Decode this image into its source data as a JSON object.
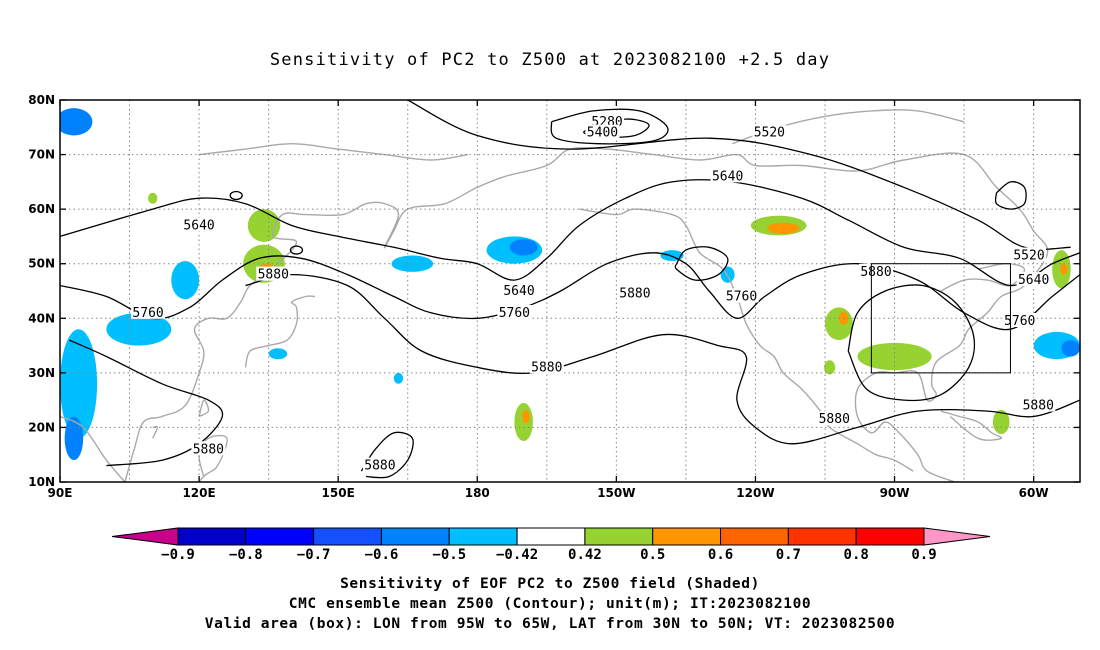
{
  "title": "Sensitivity of PC2 to Z500 at 2023082100 +2.5 day",
  "map": {
    "extent": {
      "lon": [
        90,
        310
      ],
      "lat": [
        10,
        80
      ]
    },
    "lon_ticks": [
      {
        "lon": 90,
        "label": "90E"
      },
      {
        "lon": 120,
        "label": "120E"
      },
      {
        "lon": 150,
        "label": "150E"
      },
      {
        "lon": 180,
        "label": "180"
      },
      {
        "lon": 210,
        "label": "150W"
      },
      {
        "lon": 240,
        "label": "120W"
      },
      {
        "lon": 270,
        "label": "90W"
      },
      {
        "lon": 300,
        "label": "60W"
      }
    ],
    "lat_ticks": [
      {
        "lat": 80,
        "label": "80N"
      },
      {
        "lat": 70,
        "label": "70N"
      },
      {
        "lat": 60,
        "label": "60N"
      },
      {
        "lat": 50,
        "label": "50N"
      },
      {
        "lat": 40,
        "label": "40N"
      },
      {
        "lat": 30,
        "label": "30N"
      },
      {
        "lat": 20,
        "label": "20N"
      },
      {
        "lat": 10,
        "label": "10N"
      }
    ],
    "grid": true,
    "valid_box": {
      "lon": [
        265,
        295
      ],
      "lat": [
        30,
        50
      ]
    },
    "contours": [
      {
        "value": 5280,
        "label": "5280",
        "points": [
          [
            205,
            75
          ],
          [
            212,
            76.5
          ],
          [
            217,
            75.5
          ],
          [
            214,
            73.5
          ],
          [
            207,
            73.2
          ],
          [
            203,
            74
          ],
          [
            205,
            75
          ]
        ]
      },
      {
        "value": 5400,
        "label": "5400",
        "points": [
          [
            196,
            76
          ],
          [
            205,
            78
          ],
          [
            215,
            78
          ],
          [
            221,
            75
          ],
          [
            218,
            72.5
          ],
          [
            206,
            72
          ],
          [
            197,
            73
          ],
          [
            196,
            76
          ]
        ]
      },
      {
        "value": 5520,
        "label": "5520",
        "points": [
          [
            165,
            80
          ],
          [
            180,
            73.5
          ],
          [
            200,
            71
          ],
          [
            230,
            73
          ],
          [
            252,
            70
          ],
          [
            272,
            64
          ],
          [
            288,
            58
          ],
          [
            298,
            53
          ],
          [
            308,
            53
          ]
        ]
      },
      {
        "value": 5640,
        "label": "5640",
        "points": [
          [
            90,
            55
          ],
          [
            110,
            60
          ],
          [
            120,
            62
          ],
          [
            130,
            61
          ],
          [
            140,
            57
          ],
          [
            150,
            55
          ],
          [
            162,
            53
          ],
          [
            172,
            51
          ],
          [
            180,
            50
          ],
          [
            188,
            47
          ],
          [
            195,
            51
          ],
          [
            202,
            57
          ],
          [
            212,
            62
          ],
          [
            222,
            65
          ],
          [
            235,
            65
          ],
          [
            250,
            62
          ],
          [
            260,
            58
          ],
          [
            272,
            53
          ],
          [
            284,
            51
          ],
          [
            295,
            46
          ],
          [
            304,
            50
          ],
          [
            310,
            52
          ]
        ]
      },
      {
        "value": 5760,
        "label": "5760",
        "points": [
          [
            90,
            46
          ],
          [
            100,
            44
          ],
          [
            110,
            40
          ],
          [
            118,
            42
          ],
          [
            125,
            47
          ],
          [
            133,
            51
          ],
          [
            142,
            51
          ],
          [
            152,
            48
          ],
          [
            162,
            44
          ],
          [
            170,
            41
          ],
          [
            180,
            40
          ],
          [
            190,
            42
          ],
          [
            198,
            45
          ],
          [
            208,
            50
          ],
          [
            218,
            52
          ],
          [
            225,
            50
          ],
          [
            230,
            45
          ],
          [
            236,
            40
          ],
          [
            242,
            44
          ],
          [
            250,
            48
          ],
          [
            262,
            50
          ],
          [
            275,
            47
          ],
          [
            285,
            41
          ],
          [
            295,
            38
          ],
          [
            304,
            44
          ],
          [
            310,
            48
          ]
        ]
      },
      {
        "value": 5880,
        "label": "5880",
        "points": [
          [
            92,
            36
          ],
          [
            100,
            33
          ],
          [
            112,
            28
          ],
          [
            122,
            25
          ],
          [
            125,
            22
          ],
          [
            120,
            17
          ],
          [
            112,
            14
          ],
          [
            100,
            13
          ]
        ]
      },
      {
        "value": 5880,
        "label": "5880",
        "points": [
          [
            130,
            46
          ],
          [
            140,
            48
          ],
          [
            152,
            46
          ],
          [
            160,
            40
          ],
          [
            168,
            34
          ],
          [
            180,
            31
          ],
          [
            192,
            30
          ],
          [
            205,
            33
          ],
          [
            220,
            37
          ],
          [
            232,
            35
          ],
          [
            238,
            33
          ],
          [
            236,
            25
          ],
          [
            240,
            20
          ],
          [
            248,
            17
          ],
          [
            262,
            20
          ],
          [
            275,
            23
          ],
          [
            290,
            23
          ],
          [
            300,
            22
          ],
          [
            310,
            25
          ]
        ]
      },
      {
        "value": 5880,
        "label": "5880",
        "points": [
          [
            155,
            12
          ],
          [
            158,
            16
          ],
          [
            162,
            19
          ],
          [
            166,
            18
          ],
          [
            165,
            14
          ],
          [
            161,
            11
          ],
          [
            156,
            11
          ]
        ]
      },
      {
        "value": 5880,
        "label": "5880",
        "points": [
          [
            260,
            34
          ],
          [
            262,
            41
          ],
          [
            268,
            45
          ],
          [
            276,
            46
          ],
          [
            283,
            43
          ],
          [
            287,
            37
          ],
          [
            286,
            31
          ],
          [
            280,
            26
          ],
          [
            272,
            25
          ],
          [
            264,
            27
          ],
          [
            260,
            34
          ]
        ]
      }
    ],
    "contour_labels": [
      {
        "text": "5280",
        "lon": 208,
        "lat": 76
      },
      {
        "text": "5400",
        "lon": 207,
        "lat": 74
      },
      {
        "text": "5520",
        "lon": 243,
        "lat": 74
      },
      {
        "text": "5520",
        "lon": 299,
        "lat": 51.5
      },
      {
        "text": "5640",
        "lon": 120,
        "lat": 57
      },
      {
        "text": "5640",
        "lon": 189,
        "lat": 45
      },
      {
        "text": "5640",
        "lon": 234,
        "lat": 66
      },
      {
        "text": "5640",
        "lon": 300,
        "lat": 47
      },
      {
        "text": "5760",
        "lon": 109,
        "lat": 41
      },
      {
        "text": "5760",
        "lon": 188,
        "lat": 41
      },
      {
        "text": "5760",
        "lon": 237,
        "lat": 44
      },
      {
        "text": "5760",
        "lon": 297,
        "lat": 39.5
      },
      {
        "text": "5880",
        "lon": 136,
        "lat": 48
      },
      {
        "text": "5880",
        "lon": 122,
        "lat": 16
      },
      {
        "text": "5880",
        "lon": 159,
        "lat": 13
      },
      {
        "text": "5880",
        "lon": 195,
        "lat": 31
      },
      {
        "text": "5880",
        "lon": 214,
        "lat": 44.5
      },
      {
        "text": "5880",
        "lon": 266,
        "lat": 48.5
      },
      {
        "text": "5880",
        "lon": 257,
        "lat": 21.5
      },
      {
        "text": "5880",
        "lon": 301,
        "lat": 24
      }
    ],
    "shaded": [
      {
        "level": -0.6,
        "color": "#0082ff",
        "center": [
          93,
          76
        ],
        "r": [
          4,
          2.5
        ]
      },
      {
        "level": -0.5,
        "color": "#00bfff",
        "center": [
          117,
          47
        ],
        "r": [
          3,
          3.5
        ]
      },
      {
        "level": -0.5,
        "color": "#00bfff",
        "center": [
          107,
          38
        ],
        "r": [
          7,
          3
        ]
      },
      {
        "level": -0.5,
        "color": "#00bfff",
        "center": [
          94,
          28
        ],
        "r": [
          4,
          10
        ]
      },
      {
        "level": -0.6,
        "color": "#0082ff",
        "center": [
          93,
          18
        ],
        "r": [
          2,
          4
        ]
      },
      {
        "level": -0.5,
        "color": "#00bfff",
        "center": [
          137,
          33.5
        ],
        "r": [
          2,
          1
        ]
      },
      {
        "level": -0.5,
        "color": "#00bfff",
        "center": [
          166,
          50
        ],
        "r": [
          4.5,
          1.5
        ]
      },
      {
        "level": -0.5,
        "color": "#00bfff",
        "center": [
          188,
          52.5
        ],
        "r": [
          6,
          2.5
        ]
      },
      {
        "level": -0.6,
        "color": "#0082ff",
        "center": [
          190,
          53
        ],
        "r": [
          3,
          1.5
        ]
      },
      {
        "level": -0.5,
        "color": "#00bfff",
        "center": [
          222,
          51.5
        ],
        "r": [
          2.5,
          1
        ]
      },
      {
        "level": -0.5,
        "color": "#00bfff",
        "center": [
          234,
          48
        ],
        "r": [
          1.5,
          1.5
        ]
      },
      {
        "level": -0.5,
        "color": "#00bfff",
        "center": [
          305,
          35
        ],
        "r": [
          5,
          2.5
        ]
      },
      {
        "level": -0.6,
        "color": "#0082ff",
        "center": [
          308,
          34.5
        ],
        "r": [
          2,
          1.5
        ]
      },
      {
        "level": -0.5,
        "color": "#00bfff",
        "center": [
          163,
          29
        ],
        "r": [
          1,
          1
        ]
      },
      {
        "level": 0.5,
        "color": "#96d232",
        "center": [
          134,
          57
        ],
        "r": [
          3.5,
          3
        ]
      },
      {
        "level": 0.5,
        "color": "#96d232",
        "center": [
          134,
          50
        ],
        "r": [
          4.5,
          3.5
        ]
      },
      {
        "level": 0.6,
        "color": "#ff9600",
        "center": [
          134.5,
          48.5
        ],
        "r": [
          2,
          1.5
        ]
      },
      {
        "level": 0.5,
        "color": "#96d232",
        "center": [
          110,
          62
        ],
        "r": [
          1,
          1
        ]
      },
      {
        "level": 0.5,
        "color": "#96d232",
        "center": [
          190,
          21
        ],
        "r": [
          2,
          3.5
        ]
      },
      {
        "level": 0.6,
        "color": "#ff9600",
        "center": [
          190.5,
          22
        ],
        "r": [
          0.8,
          1.2
        ]
      },
      {
        "level": 0.5,
        "color": "#96d232",
        "center": [
          245,
          57
        ],
        "r": [
          6,
          1.8
        ]
      },
      {
        "level": 0.6,
        "color": "#ff9600",
        "center": [
          246,
          56.5
        ],
        "r": [
          3.5,
          1
        ]
      },
      {
        "level": 0.5,
        "color": "#96d232",
        "center": [
          258,
          39
        ],
        "r": [
          3,
          3
        ]
      },
      {
        "level": 0.6,
        "color": "#ff9600",
        "center": [
          259,
          40
        ],
        "r": [
          1,
          1.2
        ]
      },
      {
        "level": 0.5,
        "color": "#96d232",
        "center": [
          270,
          33
        ],
        "r": [
          8,
          2.5
        ]
      },
      {
        "level": 0.5,
        "color": "#96d232",
        "center": [
          256,
          31
        ],
        "r": [
          1.2,
          1.3
        ]
      },
      {
        "level": 0.5,
        "color": "#96d232",
        "center": [
          293,
          21
        ],
        "r": [
          1.8,
          2.2
        ]
      },
      {
        "level": 0.5,
        "color": "#96d232",
        "center": [
          306,
          49
        ],
        "r": [
          2,
          3.5
        ]
      },
      {
        "level": 0.6,
        "color": "#ff9600",
        "center": [
          306.5,
          49
        ],
        "r": [
          0.8,
          1
        ]
      }
    ]
  },
  "colorbar": {
    "colors": [
      "#c8008c",
      "#0000c8",
      "#0000ff",
      "#1450ff",
      "#0082ff",
      "#00bfff",
      "#ffffff",
      "#96d232",
      "#ff9600",
      "#ff6400",
      "#ff3200",
      "#ff0000",
      "#ff96c8"
    ],
    "labels": [
      "−0.9",
      "−0.8",
      "−0.7",
      "−0.6",
      "−0.5",
      "−0.42",
      "0.42",
      "0.5",
      "0.6",
      "0.7",
      "0.8",
      "0.9"
    ]
  },
  "caption": {
    "line1": "Sensitivity of EOF PC2 to Z500 field (Shaded)",
    "line2": "CMC ensemble mean Z500 (Contour); unit(m); IT:2023082100",
    "line3": "Valid area (box): LON from 95W to 65W, LAT from 30N to 50N; VT: 2023082500"
  }
}
